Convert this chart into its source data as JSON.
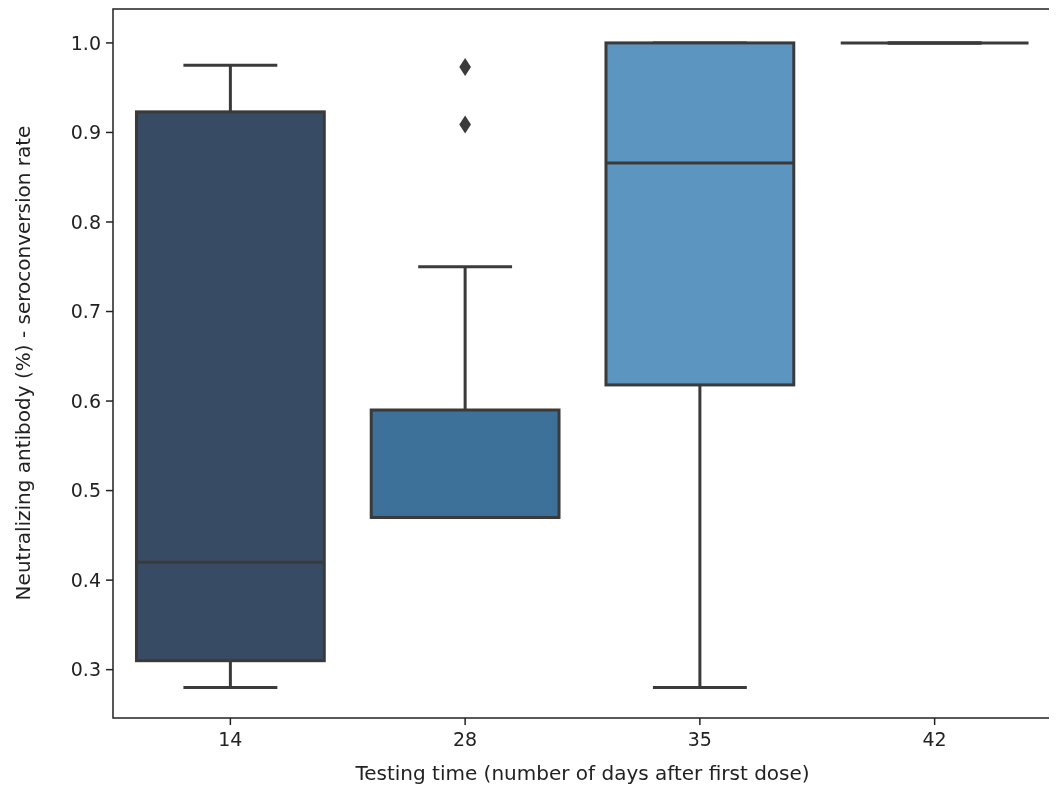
{
  "chart_data": {
    "type": "box",
    "xlabel": "Testing time (number of days after first dose)",
    "ylabel": "Neutralizing antibody (%) - seroconversion rate",
    "categories": [
      "14",
      "28",
      "35",
      "42"
    ],
    "colors": [
      "#374c64",
      "#3e7199",
      "#5b95c0",
      null
    ],
    "boxes": [
      {
        "low": 0.28,
        "q1": 0.31,
        "median": 0.42,
        "q3": 0.923,
        "high": 0.975
      },
      {
        "low": 0.47,
        "q1": 0.47,
        "median": 0.47,
        "q3": 0.59,
        "high": 0.75,
        "outliers": [
          0.973,
          0.909
        ]
      },
      {
        "low": 0.28,
        "q1": 0.618,
        "median": 0.866,
        "q3": 1.0,
        "high": 1.0
      },
      {
        "low": 1.0,
        "q1": 1.0,
        "median": 1.0,
        "q3": 1.0,
        "high": 1.0
      }
    ],
    "ylim": [
      0.246,
      1.039
    ],
    "yticks": [
      {
        "value": 0.3,
        "label": "0.3"
      },
      {
        "value": 0.4,
        "label": "0.4"
      },
      {
        "value": 0.5,
        "label": "0.5"
      },
      {
        "value": 0.6,
        "label": "0.6"
      },
      {
        "value": 0.7,
        "label": "0.7"
      },
      {
        "value": 0.8,
        "label": "0.8"
      },
      {
        "value": 0.9,
        "label": "0.9"
      },
      {
        "value": 1.0,
        "label": "1.0"
      }
    ],
    "marker": "diamond",
    "grid": false
  }
}
